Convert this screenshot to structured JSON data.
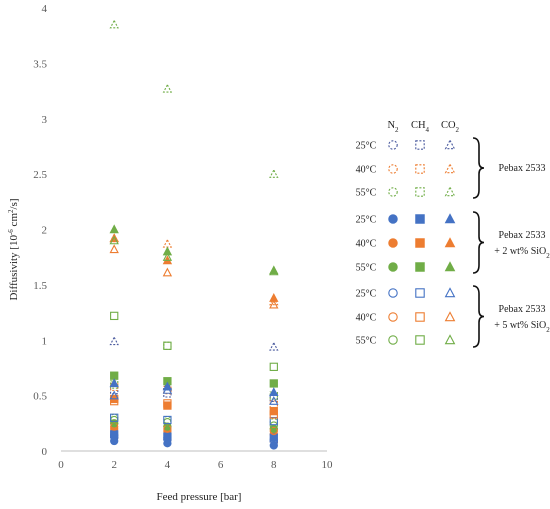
{
  "colors": {
    "n2": "#4472c4",
    "ch4": "#ed7d31",
    "co2": "#70ad47",
    "n2_25": "#4a5a9e",
    "axis": "#bfbfbf"
  },
  "chart_data": {
    "type": "scatter",
    "xlabel": "Feed pressure [bar]",
    "ylabel_parts": {
      "pre": "Diffusivity [10",
      "sup": "-6",
      "mid": " cm",
      "sup2": "2",
      "post": "/s]"
    },
    "xlim": [
      0,
      10
    ],
    "ylim": [
      0,
      4
    ],
    "xticks": [
      0,
      2,
      4,
      6,
      8,
      10
    ],
    "yticks": [
      0,
      0.5,
      1,
      1.5,
      2,
      2.5,
      3,
      3.5,
      4
    ],
    "ytick_labels": [
      "0",
      "0.5",
      "1",
      "1.5",
      "2",
      "2.5",
      "3",
      "3.5",
      "4"
    ],
    "x": [
      2,
      4,
      8
    ],
    "series": [
      {
        "gas": "N2",
        "temp": "25",
        "material": "Pebax 2533",
        "color": "#4a5a9e",
        "marker": "circle",
        "style": "dashed",
        "values": [
          0.12,
          0.1,
          0.08
        ]
      },
      {
        "gas": "N2",
        "temp": "40",
        "material": "Pebax 2533",
        "color": "#ed7d31",
        "marker": "circle",
        "style": "dashed",
        "values": [
          0.25,
          0.22,
          0.2
        ]
      },
      {
        "gas": "N2",
        "temp": "55",
        "material": "Pebax 2533",
        "color": "#70ad47",
        "marker": "circle",
        "style": "dashed",
        "values": [
          0.3,
          0.28,
          0.26
        ]
      },
      {
        "gas": "CH4",
        "temp": "25",
        "material": "Pebax 2533",
        "color": "#4a5a9e",
        "marker": "square",
        "style": "dashed",
        "values": [
          0.55,
          0.52,
          0.48
        ]
      },
      {
        "gas": "CH4",
        "temp": "40",
        "material": "Pebax 2533",
        "color": "#ed7d31",
        "marker": "square",
        "style": "dashed",
        "values": [
          0.58,
          0.55,
          0.42
        ]
      },
      {
        "gas": "CH4",
        "temp": "55",
        "material": "Pebax 2533",
        "color": "#70ad47",
        "marker": "square",
        "style": "dashed",
        "values": [
          0.6,
          0.95,
          0.5
        ]
      },
      {
        "gas": "CO2",
        "temp": "25",
        "material": "Pebax 2533",
        "color": "#4a5a9e",
        "marker": "triangle",
        "style": "dashed",
        "values": [
          0.99,
          0.59,
          0.94
        ]
      },
      {
        "gas": "CO2",
        "temp": "40",
        "material": "Pebax 2533",
        "color": "#ed7d31",
        "marker": "triangle",
        "style": "dashed",
        "values": [
          1.92,
          1.87,
          1.35
        ]
      },
      {
        "gas": "CO2",
        "temp": "55",
        "material": "Pebax 2533",
        "color": "#70ad47",
        "marker": "triangle",
        "style": "dashed",
        "values": [
          3.85,
          3.27,
          2.5
        ]
      },
      {
        "gas": "N2",
        "temp": "25",
        "material": "Pebax 2533 + 2 wt% SiO2",
        "color": "#4472c4",
        "marker": "circle",
        "style": "filled",
        "values": [
          0.09,
          0.07,
          0.05
        ]
      },
      {
        "gas": "N2",
        "temp": "40",
        "material": "Pebax 2533 + 2 wt% SiO2",
        "color": "#ed7d31",
        "marker": "circle",
        "style": "filled",
        "values": [
          0.2,
          0.18,
          0.15
        ]
      },
      {
        "gas": "N2",
        "temp": "55",
        "material": "Pebax 2533 + 2 wt% SiO2",
        "color": "#70ad47",
        "marker": "circle",
        "style": "filled",
        "values": [
          0.25,
          0.22,
          0.2
        ]
      },
      {
        "gas": "CH4",
        "temp": "25",
        "material": "Pebax 2533 + 2 wt% SiO2",
        "color": "#4472c4",
        "marker": "square",
        "style": "filled",
        "values": [
          0.15,
          0.13,
          0.12
        ]
      },
      {
        "gas": "CH4",
        "temp": "40",
        "material": "Pebax 2533 + 2 wt% SiO2",
        "color": "#ed7d31",
        "marker": "square",
        "style": "filled",
        "values": [
          0.47,
          0.41,
          0.36
        ]
      },
      {
        "gas": "CH4",
        "temp": "55",
        "material": "Pebax 2533 + 2 wt% SiO2",
        "color": "#70ad47",
        "marker": "square",
        "style": "filled",
        "values": [
          0.68,
          0.63,
          0.61
        ]
      },
      {
        "gas": "CO2",
        "temp": "25",
        "material": "Pebax 2533 + 2 wt% SiO2",
        "color": "#4472c4",
        "marker": "triangle",
        "style": "filled",
        "values": [
          0.61,
          0.58,
          0.53
        ]
      },
      {
        "gas": "CO2",
        "temp": "40",
        "material": "Pebax 2533 + 2 wt% SiO2",
        "color": "#ed7d31",
        "marker": "triangle",
        "style": "filled",
        "values": [
          1.92,
          1.72,
          1.38
        ]
      },
      {
        "gas": "CO2",
        "temp": "55",
        "material": "Pebax 2533 + 2 wt% SiO2",
        "color": "#70ad47",
        "marker": "triangle",
        "style": "filled",
        "values": [
          2.0,
          1.8,
          1.63
        ]
      },
      {
        "gas": "N2",
        "temp": "25",
        "material": "Pebax 2533 + 5 wt% SiO2",
        "color": "#4472c4",
        "marker": "circle",
        "style": "hollow",
        "values": [
          0.14,
          0.12,
          0.1
        ]
      },
      {
        "gas": "N2",
        "temp": "40",
        "material": "Pebax 2533 + 5 wt% SiO2",
        "color": "#ed7d31",
        "marker": "circle",
        "style": "hollow",
        "values": [
          0.22,
          0.2,
          0.18
        ]
      },
      {
        "gas": "N2",
        "temp": "55",
        "material": "Pebax 2533 + 5 wt% SiO2",
        "color": "#70ad47",
        "marker": "circle",
        "style": "hollow",
        "values": [
          0.28,
          0.26,
          0.23
        ]
      },
      {
        "gas": "CH4",
        "temp": "25",
        "material": "Pebax 2533 + 5 wt% SiO2",
        "color": "#4472c4",
        "marker": "square",
        "style": "hollow",
        "values": [
          0.3,
          0.28,
          0.27
        ]
      },
      {
        "gas": "CH4",
        "temp": "40",
        "material": "Pebax 2533 + 5 wt% SiO2",
        "color": "#ed7d31",
        "marker": "square",
        "style": "hollow",
        "values": [
          0.45,
          0.43,
          0.33
        ]
      },
      {
        "gas": "CH4",
        "temp": "55",
        "material": "Pebax 2533 + 5 wt% SiO2",
        "color": "#70ad47",
        "marker": "square",
        "style": "hollow",
        "values": [
          1.22,
          0.95,
          0.76
        ]
      },
      {
        "gas": "CO2",
        "temp": "25",
        "material": "Pebax 2533 + 5 wt% SiO2",
        "color": "#4472c4",
        "marker": "triangle",
        "style": "hollow",
        "values": [
          0.5,
          0.55,
          0.45
        ]
      },
      {
        "gas": "CO2",
        "temp": "40",
        "material": "Pebax 2533 + 5 wt% SiO2",
        "color": "#ed7d31",
        "marker": "triangle",
        "style": "hollow",
        "values": [
          1.82,
          1.61,
          1.32
        ]
      },
      {
        "gas": "CO2",
        "temp": "55",
        "material": "Pebax 2533 + 5 wt% SiO2",
        "color": "#70ad47",
        "marker": "triangle",
        "style": "hollow",
        "values": [
          1.9,
          1.75,
          1.62
        ]
      }
    ]
  },
  "legend": {
    "columns": [
      {
        "base": "N",
        "sub": "2"
      },
      {
        "base": "CH",
        "sub": "4"
      },
      {
        "base": "CO",
        "sub": "2"
      }
    ],
    "temps": [
      "25",
      "40",
      "55"
    ],
    "temp_suffix": "°C",
    "groups": [
      {
        "lines": [
          "Pebax 2533"
        ]
      },
      {
        "lines": [
          "Pebax 2533",
          "+ 2 wt% SiO"
        ],
        "sub": "2"
      },
      {
        "lines": [
          "Pebax 2533",
          "+ 5 wt% SiO"
        ],
        "sub": "2"
      }
    ]
  }
}
